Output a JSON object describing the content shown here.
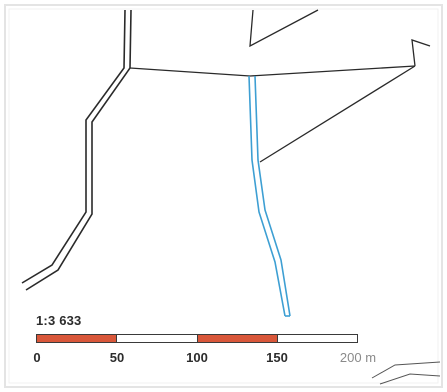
{
  "scale": {
    "ratio_label": "1:3 633",
    "segment_colors": [
      "#d9573a",
      "#ffffff",
      "#d9573a",
      "#ffffff"
    ],
    "ticks": [
      "0",
      "50",
      "100",
      "150",
      "200 m"
    ]
  },
  "colors": {
    "road_line": "#2a2a2a",
    "stream_line": "#3d9fd3",
    "frame": "#e6e6e6"
  }
}
